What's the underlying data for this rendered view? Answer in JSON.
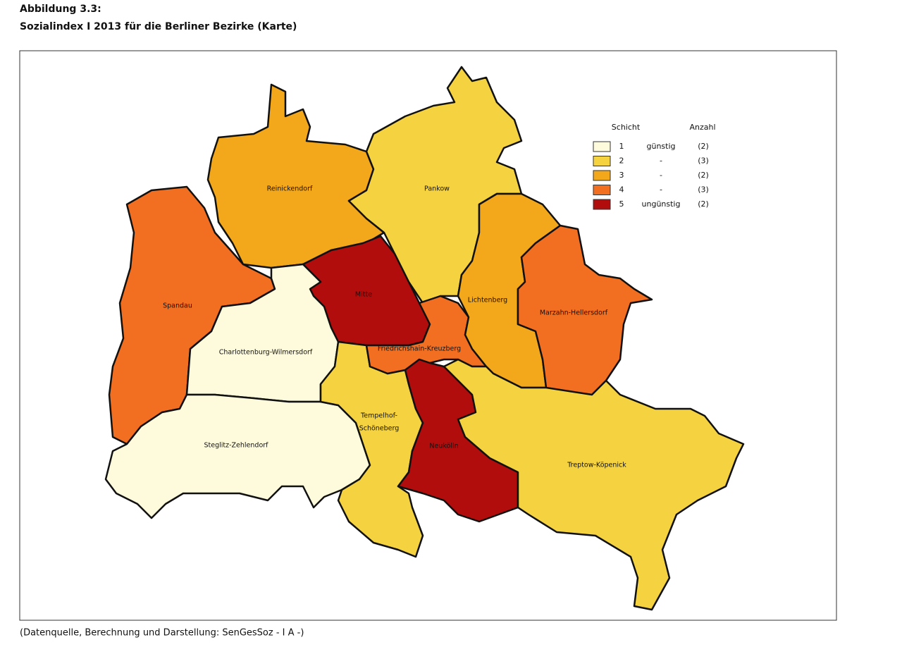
{
  "header": {
    "figure": "Abbildung 3.3:",
    "title": "Sozialindex I 2013 für die Berliner Bezirke (Karte)"
  },
  "legend": {
    "class_header": "Schicht",
    "count_header": "Anzahl",
    "rows": [
      {
        "class": 1,
        "label": "günstig",
        "count": "(2)",
        "color": "#fefbdd"
      },
      {
        "class": 2,
        "label": "-",
        "count": "(3)",
        "color": "#f5d340"
      },
      {
        "class": 3,
        "label": "-",
        "count": "(2)",
        "color": "#f3a71a"
      },
      {
        "class": 4,
        "label": "-",
        "count": "(3)",
        "color": "#f26f21"
      },
      {
        "class": 5,
        "label": "ungünstig",
        "count": "(2)",
        "color": "#b10d0d"
      }
    ]
  },
  "districts": [
    {
      "label": [
        "Spandau"
      ],
      "class": 4
    },
    {
      "label": [
        "Reinickendorf"
      ],
      "class": 3
    },
    {
      "label": [
        "Pankow"
      ],
      "class": 2
    },
    {
      "label": [
        "Mitte"
      ],
      "class": 5
    },
    {
      "label": [
        "Charlottenburg-Wilmersdorf"
      ],
      "class": 1
    },
    {
      "label": [
        "Steglitz-Zehlendorf"
      ],
      "class": 1
    },
    {
      "label": [
        "Tempelhof-",
        "Schöneberg"
      ],
      "class": 2
    },
    {
      "label": [
        "Friedrichshain-Kreuzberg"
      ],
      "class": 4
    },
    {
      "label": [
        "Neukölln"
      ],
      "class": 5
    },
    {
      "label": [
        "Lichtenberg"
      ],
      "class": 3
    },
    {
      "label": [
        "Marzahn-Hellersdorf"
      ],
      "class": 4
    },
    {
      "label": [
        "Treptow-Köpenick"
      ],
      "class": 2
    }
  ],
  "source": "(Datenquelle, Berechnung und Darstellung: SenGesSoz - I A -)"
}
